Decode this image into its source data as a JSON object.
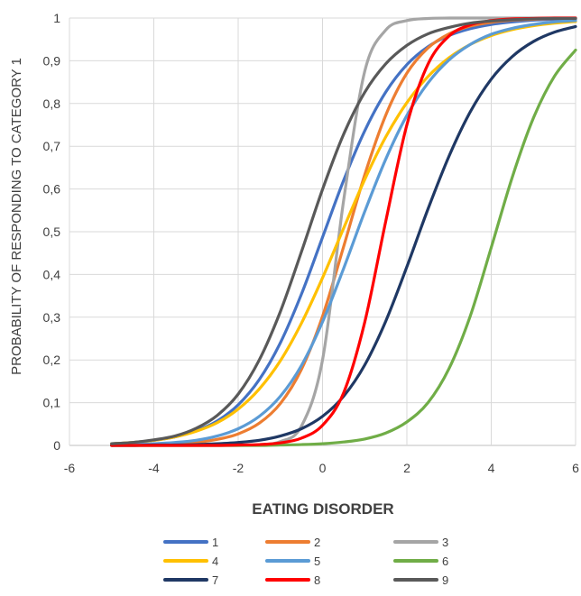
{
  "chart_data": {
    "type": "line",
    "title": "",
    "xlabel": "EATING DISORDER",
    "ylabel": "PROBABILITY OF RESPONDING TO CATEGORY 1",
    "xlim": [
      -6,
      6
    ],
    "ylim": [
      0,
      1
    ],
    "x_ticks": [
      -6,
      -4,
      -2,
      0,
      2,
      4,
      6
    ],
    "x_tick_labels": [
      "-6",
      "-4",
      "-2",
      "0",
      "2",
      "4",
      "6"
    ],
    "y_ticks": [
      0,
      0.1,
      0.2,
      0.3,
      0.4,
      0.5,
      0.6,
      0.7,
      0.8,
      0.9,
      1
    ],
    "y_tick_labels": [
      "0",
      "0,1",
      "0,2",
      "0,3",
      "0,4",
      "0,5",
      "0,6",
      "0,7",
      "0,8",
      "0,9",
      "1"
    ],
    "grid": "vertical and horizontal",
    "legend_position": "bottom",
    "x": [
      -5,
      -4.5,
      -4,
      -3.5,
      -3,
      -2.5,
      -2,
      -1.5,
      -1,
      -0.5,
      0,
      0.5,
      1,
      1.5,
      2,
      2.5,
      3,
      3.5,
      4,
      4.5,
      5,
      5.5,
      6
    ],
    "series": [
      {
        "name": "1",
        "color": "#4472c4",
        "values": [
          0.004,
          0.007,
          0.012,
          0.02,
          0.034,
          0.057,
          0.095,
          0.154,
          0.24,
          0.354,
          0.487,
          0.62,
          0.736,
          0.827,
          0.891,
          0.933,
          0.959,
          0.975,
          0.985,
          0.991,
          0.995,
          0.997,
          0.998
        ]
      },
      {
        "name": "2",
        "color": "#ed7d31",
        "values": [
          0.0,
          0.001,
          0.002,
          0.004,
          0.007,
          0.014,
          0.027,
          0.052,
          0.098,
          0.178,
          0.302,
          0.465,
          0.633,
          0.773,
          0.871,
          0.93,
          0.963,
          0.981,
          0.99,
          0.995,
          0.997,
          0.999,
          0.999
        ]
      },
      {
        "name": "3",
        "color": "#a5a5a5",
        "values": [
          0.0,
          0.0,
          0.0,
          0.0,
          0.0,
          0.0,
          0.0,
          0.002,
          0.009,
          0.045,
          0.2,
          0.573,
          0.875,
          0.972,
          0.994,
          0.999,
          1.0,
          1.0,
          1.0,
          1.0,
          1.0,
          1.0,
          1.0
        ]
      },
      {
        "name": "4",
        "color": "#ffc000",
        "values": [
          0.004,
          0.007,
          0.012,
          0.02,
          0.033,
          0.053,
          0.085,
          0.132,
          0.198,
          0.286,
          0.392,
          0.508,
          0.622,
          0.722,
          0.802,
          0.863,
          0.907,
          0.938,
          0.959,
          0.973,
          0.982,
          0.988,
          0.992
        ]
      },
      {
        "name": "5",
        "color": "#5b9bd5",
        "values": [
          0.001,
          0.002,
          0.004,
          0.007,
          0.012,
          0.022,
          0.039,
          0.068,
          0.115,
          0.187,
          0.289,
          0.414,
          0.547,
          0.67,
          0.772,
          0.848,
          0.902,
          0.938,
          0.962,
          0.976,
          0.985,
          0.991,
          0.994
        ]
      },
      {
        "name": "6",
        "color": "#70ad47",
        "values": [
          0.0,
          0.0,
          0.0,
          0.0,
          0.0,
          0.0,
          0.0,
          0.0,
          0.001,
          0.002,
          0.004,
          0.008,
          0.015,
          0.029,
          0.055,
          0.1,
          0.18,
          0.302,
          0.463,
          0.628,
          0.766,
          0.864,
          0.925
        ]
      },
      {
        "name": "7",
        "color": "#1f3864",
        "values": [
          0.0,
          0.0,
          0.001,
          0.001,
          0.002,
          0.004,
          0.007,
          0.012,
          0.022,
          0.039,
          0.068,
          0.115,
          0.188,
          0.291,
          0.418,
          0.553,
          0.677,
          0.78,
          0.857,
          0.91,
          0.945,
          0.967,
          0.98
        ]
      },
      {
        "name": "8",
        "color": "#ff0000",
        "values": [
          0.0,
          0.0,
          0.0,
          0.0,
          0.0,
          0.0,
          0.001,
          0.002,
          0.006,
          0.017,
          0.047,
          0.123,
          0.288,
          0.525,
          0.75,
          0.892,
          0.958,
          0.984,
          0.994,
          0.998,
          0.999,
          1.0,
          1.0
        ]
      },
      {
        "name": "9",
        "color": "#595959",
        "values": [
          0.004,
          0.007,
          0.013,
          0.022,
          0.04,
          0.07,
          0.12,
          0.2,
          0.313,
          0.453,
          0.599,
          0.728,
          0.826,
          0.893,
          0.936,
          0.963,
          0.978,
          0.988,
          0.993,
          0.996,
          0.998,
          0.999,
          0.999
        ]
      }
    ]
  }
}
